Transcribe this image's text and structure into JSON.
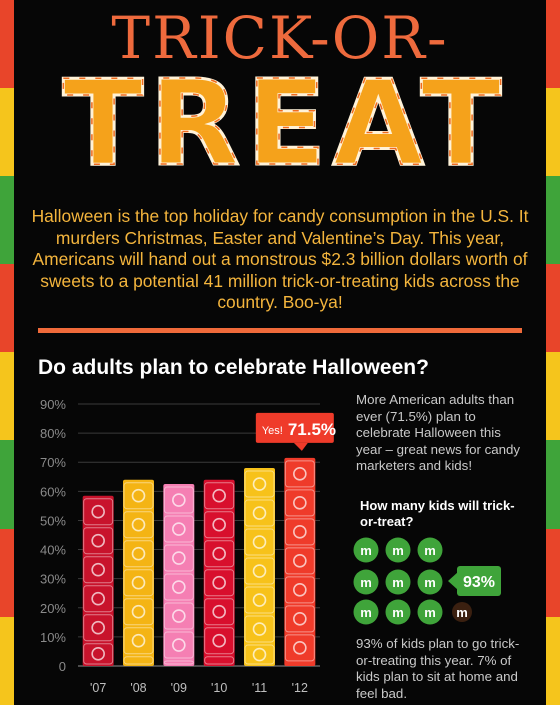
{
  "header": {
    "title": "TRICK-OR-",
    "candy_word": "TREAT"
  },
  "intro": {
    "text": "Halloween is the top holiday for candy consumption in the U.S. It murders Christmas, Easter and Valentine’s Day. This year, Americans will hand out a monstrous $2.3 billion dollars worth of sweets to a potential 41 million trick-or-treating kids across the country. Boo-ya!"
  },
  "question": "Do adults plan to celebrate Halloween?",
  "chart_data": [
    {
      "type": "bar",
      "title": "Do adults plan to celebrate Halloween?",
      "categories": [
        "'07",
        "'08",
        "'09",
        "'10",
        "'11",
        "'12"
      ],
      "values": [
        58.5,
        64,
        62.5,
        64,
        68,
        71.5
      ],
      "ylim": [
        0,
        90
      ],
      "yticks": [
        "0",
        "10%",
        "20%",
        "30%",
        "40%",
        "50%",
        "60%",
        "70%",
        "80%",
        "90%"
      ],
      "annotation": {
        "prefix": "Yes!",
        "value": "71.5%",
        "category": "'12"
      },
      "bar_colors": [
        "#c8132c",
        "#f4b414",
        "#f57fb3",
        "#d80f2d",
        "#f7c21a",
        "#ef3b2a"
      ]
    },
    {
      "type": "pie",
      "title": "How many kids will trick-or-treat?",
      "series": [
        {
          "name": "trick-or-treat",
          "value": 93,
          "color": "#3fa43a"
        },
        {
          "name": "stay home",
          "value": 7,
          "color": "#3b2010"
        }
      ],
      "label": "93%"
    }
  ],
  "side": {
    "text": "More American adults than ever (71.5%) plan to celebrate Halloween this year – great news for candy marketers and kids!",
    "kids_question": "How many kids will trick-or-treat?",
    "kids_note": "93% of kids plan to go trick-or-treating this year. 7% of kids plan to sit at home and feel bad.",
    "pill_label": "93%",
    "candy_letter": "m"
  },
  "colors": {
    "orange": "#ef6a3a",
    "yellow_text": "#f4b53d",
    "green": "#3fa43a",
    "stripes": [
      "#e8452a",
      "#f5c51c",
      "#3fa43a",
      "#e8452a",
      "#f5c51c",
      "#3fa43a",
      "#e8452a",
      "#f5c51c"
    ]
  }
}
